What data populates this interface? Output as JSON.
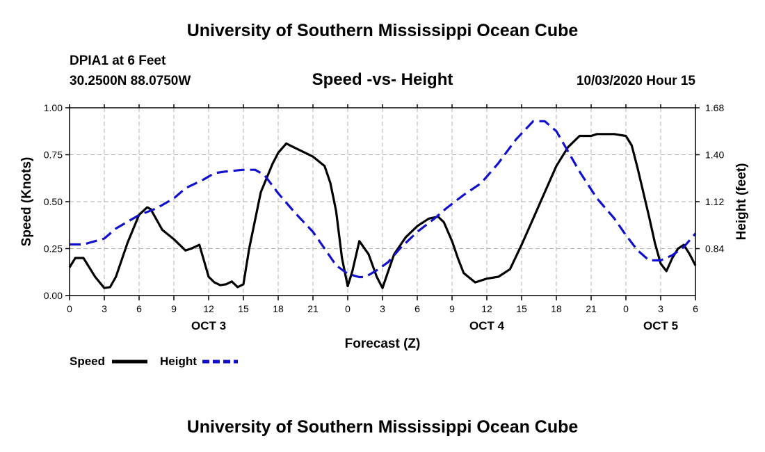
{
  "header": {
    "top_title": "University of Southern Mississippi Ocean Cube",
    "station_line": "DPIA1 at 6 Feet",
    "coords_line": "30.2500N 88.0750W",
    "subtitle": "Speed -vs- Height",
    "datetime": "10/03/2020 Hour 15"
  },
  "footer": {
    "bottom_title": "University of Southern Mississippi Ocean Cube"
  },
  "colors": {
    "speed": "#000000",
    "height": "#1010cc",
    "grid": "#b0b0b0"
  },
  "chart_data": {
    "type": "line",
    "title": "Speed -vs- Height",
    "xlabel": "Forecast (Z)",
    "ylabel": "Speed (Knots)",
    "y2label": "Height (feet)",
    "x_unit": "hours since OCT 3 00Z",
    "xlim": [
      0,
      54
    ],
    "ylim": [
      0,
      1.0
    ],
    "y2lim": [
      0.56,
      1.68
    ],
    "x_ticks": [
      0,
      3,
      6,
      9,
      12,
      15,
      18,
      21,
      24,
      27,
      30,
      33,
      36,
      39,
      42,
      45,
      48,
      51,
      54
    ],
    "x_tick_labels": [
      "0",
      "3",
      "6",
      "9",
      "12",
      "15",
      "18",
      "21",
      "0",
      "3",
      "6",
      "9",
      "12",
      "15",
      "18",
      "21",
      "0",
      "3",
      "6"
    ],
    "y_ticks": [
      0.0,
      0.25,
      0.5,
      0.75,
      1.0
    ],
    "y_tick_labels": [
      "0.00",
      "0.25",
      "0.50",
      "0.75",
      "1.00"
    ],
    "y2_ticks": [
      0.84,
      1.12,
      1.4,
      1.68
    ],
    "y2_tick_labels": [
      "0.84",
      "1.12",
      "1.40",
      "1.68"
    ],
    "day_labels": [
      {
        "x": 12,
        "label": "OCT 3"
      },
      {
        "x": 36,
        "label": "OCT 4"
      },
      {
        "x": 51,
        "label": "OCT 5"
      }
    ],
    "grid": true,
    "series": [
      {
        "name": "Speed",
        "axis": "left",
        "style": "solid",
        "x": [
          0,
          0.5,
          1.2,
          2.2,
          3.0,
          3.5,
          4.0,
          5.0,
          6.0,
          6.7,
          7.0,
          8.0,
          9.0,
          10.0,
          10.5,
          11.2,
          12.0,
          12.5,
          13.0,
          13.5,
          14.0,
          14.5,
          15.0,
          15.5,
          16.5,
          17.5,
          18.0,
          18.7,
          19.0,
          20.0,
          21.0,
          22.0,
          22.5,
          23.0,
          23.5,
          24.0,
          24.4,
          25.0,
          25.8,
          26.5,
          27.0,
          27.5,
          28.0,
          29.0,
          30.0,
          31.0,
          31.8,
          32.3,
          33.0,
          33.5,
          34.0,
          35.0,
          35.5,
          36.0,
          37.0,
          38.0,
          39.0,
          40.0,
          41.0,
          42.0,
          43.0,
          44.0,
          45.0,
          45.5,
          46.0,
          47.0,
          48.0,
          48.5,
          49.0,
          49.5,
          50.0,
          50.5,
          51.0,
          51.5,
          52.0,
          52.5,
          53.0,
          53.5,
          54.0
        ],
        "values": [
          0.15,
          0.2,
          0.2,
          0.1,
          0.04,
          0.045,
          0.1,
          0.28,
          0.43,
          0.47,
          0.46,
          0.35,
          0.3,
          0.24,
          0.25,
          0.27,
          0.1,
          0.07,
          0.055,
          0.06,
          0.075,
          0.045,
          0.06,
          0.25,
          0.55,
          0.7,
          0.76,
          0.81,
          0.8,
          0.77,
          0.74,
          0.69,
          0.6,
          0.45,
          0.2,
          0.05,
          0.13,
          0.29,
          0.22,
          0.1,
          0.04,
          0.13,
          0.22,
          0.31,
          0.37,
          0.41,
          0.42,
          0.39,
          0.29,
          0.2,
          0.12,
          0.07,
          0.08,
          0.09,
          0.1,
          0.14,
          0.27,
          0.41,
          0.55,
          0.69,
          0.79,
          0.85,
          0.85,
          0.86,
          0.86,
          0.86,
          0.85,
          0.8,
          0.68,
          0.55,
          0.42,
          0.28,
          0.17,
          0.13,
          0.2,
          0.25,
          0.27,
          0.22,
          0.16
        ]
      },
      {
        "name": "Height",
        "axis": "right",
        "style": "dashed",
        "x": [
          0,
          1.2,
          3.0,
          4.0,
          6.0,
          7.5,
          9.0,
          10.0,
          11.5,
          12.5,
          13.5,
          15.0,
          16.0,
          16.8,
          18.0,
          19.5,
          21.0,
          22.0,
          23.0,
          24.0,
          25.0,
          25.5,
          26.5,
          27.5,
          28.5,
          30.0,
          31.5,
          32.5,
          34.0,
          35.5,
          37.0,
          38.5,
          40.0,
          41.0,
          42.0,
          43.0,
          44.0,
          45.5,
          47.0,
          48.0,
          49.0,
          50.0,
          51.0,
          52.0,
          53.0,
          54.0
        ],
        "values": [
          0.865,
          0.865,
          0.9,
          0.96,
          1.04,
          1.08,
          1.14,
          1.2,
          1.25,
          1.29,
          1.3,
          1.31,
          1.31,
          1.28,
          1.17,
          1.05,
          0.94,
          0.84,
          0.74,
          0.69,
          0.67,
          0.67,
          0.71,
          0.76,
          0.84,
          0.94,
          1.02,
          1.08,
          1.16,
          1.23,
          1.35,
          1.49,
          1.6,
          1.6,
          1.54,
          1.42,
          1.3,
          1.14,
          1.02,
          0.92,
          0.83,
          0.77,
          0.77,
          0.8,
          0.85,
          0.93
        ]
      }
    ]
  },
  "legend": {
    "speed_label": "Speed",
    "height_label": "Height"
  }
}
